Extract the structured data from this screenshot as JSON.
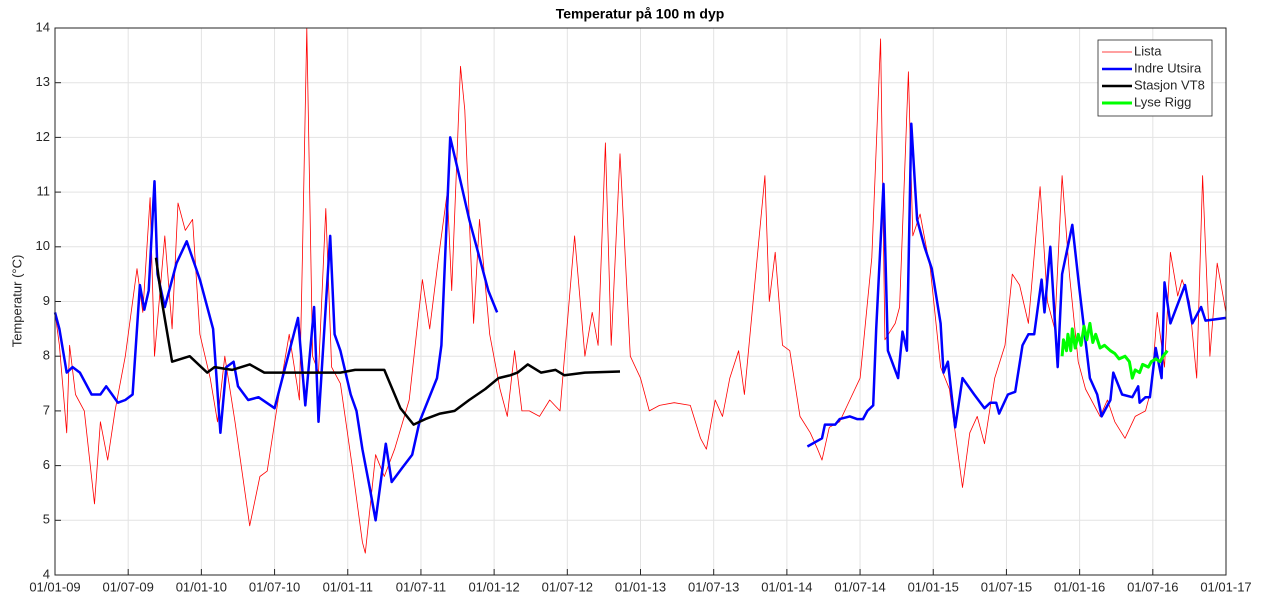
{
  "chart_data": {
    "type": "line",
    "title": "Temperatur på 100 m dyp",
    "y_label": "Temperatur (°C)",
    "xlim": [
      2009,
      2017
    ],
    "ylim": [
      4,
      14
    ],
    "xticks": [
      {
        "value": 2009,
        "label": "01/01-09"
      },
      {
        "value": 2009.5,
        "label": "01/07-09"
      },
      {
        "value": 2010,
        "label": "01/01-10"
      },
      {
        "value": 2010.5,
        "label": "01/07-10"
      },
      {
        "value": 2011,
        "label": "01/01-11"
      },
      {
        "value": 2011.5,
        "label": "01/07-11"
      },
      {
        "value": 2012,
        "label": "01/01-12"
      },
      {
        "value": 2012.5,
        "label": "01/07-12"
      },
      {
        "value": 2013,
        "label": "01/01-13"
      },
      {
        "value": 2013.5,
        "label": "01/07-13"
      },
      {
        "value": 2014,
        "label": "01/01-14"
      },
      {
        "value": 2014.5,
        "label": "01/07-14"
      },
      {
        "value": 2015,
        "label": "01/01-15"
      },
      {
        "value": 2015.5,
        "label": "01/07-15"
      },
      {
        "value": 2016,
        "label": "01/01-16"
      },
      {
        "value": 2016.5,
        "label": "01/07-16"
      },
      {
        "value": 2017,
        "label": "01/01-17"
      }
    ],
    "yticks": [
      4,
      5,
      6,
      7,
      8,
      9,
      10,
      11,
      12,
      13,
      14
    ],
    "grid": true,
    "legend": "upper right",
    "series": [
      {
        "name": "Lista",
        "color": "#ff0000",
        "width": 0.8,
        "x": [
          2009.0,
          2009.03,
          2009.08,
          2009.1,
          2009.14,
          2009.2,
          2009.27,
          2009.31,
          2009.36,
          2009.41,
          2009.48,
          2009.56,
          2009.6,
          2009.65,
          2009.68,
          2009.75,
          2009.8,
          2009.84,
          2009.89,
          2009.94,
          2009.99,
          2010.06,
          2010.11,
          2010.16,
          2010.23,
          2010.33,
          2010.4,
          2010.45,
          2010.53,
          2010.6,
          2010.67,
          2010.69,
          2010.72,
          2010.76,
          2010.8,
          2010.85,
          2010.89,
          2010.95,
          2011.03,
          2011.1,
          2011.12,
          2011.19,
          2011.25,
          2011.32,
          2011.42,
          2011.51,
          2011.56,
          2011.62,
          2011.68,
          2011.71,
          2011.77,
          2011.8,
          2011.86,
          2011.9,
          2011.97,
          2012.04,
          2012.09,
          2012.14,
          2012.19,
          2012.24,
          2012.31,
          2012.38,
          2012.45,
          2012.55,
          2012.62,
          2012.67,
          2012.71,
          2012.76,
          2012.8,
          2012.86,
          2012.93,
          2013.0,
          2013.06,
          2013.13,
          2013.23,
          2013.34,
          2013.41,
          2013.45,
          2013.51,
          2013.56,
          2013.61,
          2013.67,
          2013.71,
          2013.85,
          2013.88,
          2013.92,
          2013.97,
          2014.02,
          2014.09,
          2014.16,
          2014.21,
          2014.24,
          2014.29,
          2014.36,
          2014.43,
          2014.5,
          2014.58,
          2014.64,
          2014.67,
          2014.74,
          2014.77,
          2014.83,
          2014.86,
          2014.91,
          2014.98,
          2015.05,
          2015.11,
          2015.2,
          2015.25,
          2015.3,
          2015.35,
          2015.42,
          2015.49,
          2015.54,
          2015.59,
          2015.65,
          2015.73,
          2015.78,
          2015.83,
          2015.88,
          2015.93,
          2015.99,
          2016.04,
          2016.14,
          2016.19,
          2016.24,
          2016.31,
          2016.38,
          2016.45,
          2016.49,
          2016.53,
          2016.58,
          2016.62,
          2016.67,
          2016.7,
          2016.75,
          2016.8,
          2016.84,
          2016.89,
          2016.94,
          2017.0
        ],
        "values": [
          8.8,
          8.2,
          6.6,
          8.2,
          7.3,
          7.0,
          5.3,
          6.8,
          6.1,
          7.0,
          8.0,
          9.6,
          8.8,
          10.9,
          8.0,
          10.2,
          8.5,
          10.8,
          10.3,
          10.5,
          8.4,
          7.6,
          6.8,
          8.0,
          6.8,
          4.9,
          5.8,
          5.9,
          7.3,
          8.4,
          7.2,
          9.8,
          14.0,
          8.0,
          7.7,
          10.7,
          7.8,
          7.5,
          6.0,
          4.6,
          4.4,
          6.2,
          5.8,
          6.3,
          7.2,
          9.4,
          8.5,
          9.8,
          11.0,
          9.2,
          13.3,
          12.5,
          8.6,
          10.5,
          8.4,
          7.4,
          6.9,
          8.1,
          7.0,
          7.0,
          6.9,
          7.2,
          7.0,
          10.2,
          8.0,
          8.8,
          8.2,
          11.9,
          8.2,
          11.7,
          8.0,
          7.6,
          7.0,
          7.1,
          7.15,
          7.1,
          6.5,
          6.3,
          7.2,
          6.9,
          7.6,
          8.1,
          7.3,
          11.3,
          9.0,
          9.9,
          8.2,
          8.1,
          6.9,
          6.6,
          6.3,
          6.1,
          6.7,
          6.8,
          7.2,
          7.6,
          9.8,
          13.8,
          8.3,
          8.6,
          8.9,
          13.2,
          10.2,
          10.6,
          9.6,
          7.8,
          7.4,
          5.6,
          6.6,
          6.9,
          6.4,
          7.6,
          8.2,
          9.5,
          9.3,
          8.6,
          11.1,
          9.0,
          8.5,
          11.3,
          9.5,
          7.9,
          7.4,
          6.9,
          7.2,
          6.8,
          6.5,
          6.9,
          7.0,
          7.4,
          8.8,
          7.8,
          9.9,
          9.1,
          9.4,
          9.0,
          7.6,
          11.3,
          8.0,
          9.7,
          8.8
        ]
      },
      {
        "name": "Indre Utsira",
        "color": "#0000ff",
        "width": 2.5,
        "x": [
          2009.0,
          2009.03,
          2009.08,
          2009.12,
          2009.17,
          2009.25,
          2009.31,
          2009.35,
          2009.39,
          2009.43,
          2009.48,
          2009.53,
          2009.58,
          2009.61,
          2009.64,
          2009.68,
          2009.7,
          2009.75,
          2009.83,
          2009.9,
          2009.99,
          2010.08,
          2010.13,
          2010.17,
          2010.22,
          2010.25,
          2010.32,
          2010.39,
          2010.5,
          2010.66,
          2010.71,
          2010.77,
          2010.8,
          2010.88,
          2010.91,
          2010.95,
          2011.02,
          2011.06,
          2011.1,
          2011.15,
          2011.19,
          2011.26,
          2011.3,
          2011.37,
          2011.44,
          2011.49,
          2011.61,
          2011.64,
          2011.7,
          2011.77,
          2011.83,
          2011.9,
          2011.96,
          2012.02,
          2013.0,
          2014.14,
          2014.24,
          2014.26,
          2014.33,
          2014.36,
          2014.43,
          2014.48,
          2014.52,
          2014.55,
          2014.59,
          2014.61,
          2014.66,
          2014.69,
          2014.76,
          2014.79,
          2014.82,
          2014.85,
          2014.89,
          2014.94,
          2014.99,
          2015.05,
          2015.07,
          2015.1,
          2015.15,
          2015.2,
          2015.28,
          2015.35,
          2015.39,
          2015.43,
          2015.45,
          2015.51,
          2015.56,
          2015.61,
          2015.65,
          2015.69,
          2015.74,
          2015.76,
          2015.8,
          2015.85,
          2015.88,
          2015.95,
          2016.0,
          2016.07,
          2016.12,
          2016.15,
          2016.21,
          2016.23,
          2016.29,
          2016.36,
          2016.4,
          2016.41,
          2016.45,
          2016.48,
          2016.52,
          2016.56,
          2016.58,
          2016.62,
          2016.72,
          2016.77,
          2016.83,
          2016.86,
          2017.0
        ],
        "values": [
          8.8,
          8.5,
          7.7,
          7.8,
          7.7,
          7.3,
          7.3,
          7.45,
          7.3,
          7.15,
          7.2,
          7.3,
          9.3,
          8.85,
          9.2,
          11.2,
          9.5,
          8.9,
          9.7,
          10.1,
          9.4,
          8.5,
          6.6,
          7.8,
          7.9,
          7.45,
          7.2,
          7.25,
          7.05,
          8.7,
          7.1,
          8.9,
          6.8,
          10.2,
          8.4,
          8.1,
          7.3,
          7.0,
          6.3,
          5.6,
          5.0,
          6.4,
          5.7,
          5.95,
          6.2,
          6.8,
          7.6,
          8.2,
          12.0,
          11.2,
          10.5,
          9.8,
          9.2,
          8.8,
          null,
          6.35,
          6.5,
          6.75,
          6.75,
          6.85,
          6.9,
          6.85,
          6.85,
          7.0,
          7.1,
          8.5,
          11.15,
          8.1,
          7.6,
          8.45,
          8.1,
          12.25,
          10.5,
          10.0,
          9.6,
          8.6,
          7.7,
          7.9,
          6.7,
          7.6,
          7.3,
          7.05,
          7.15,
          7.15,
          6.95,
          7.3,
          7.35,
          8.2,
          8.4,
          8.4,
          9.4,
          8.8,
          10.0,
          7.8,
          9.5,
          10.4,
          9.2,
          7.6,
          7.3,
          6.9,
          7.2,
          7.7,
          7.3,
          7.25,
          7.45,
          7.15,
          7.25,
          7.25,
          8.15,
          7.6,
          9.35,
          8.6,
          9.3,
          8.6,
          8.9,
          8.65,
          8.7
        ]
      },
      {
        "name": "Stasjon VT8",
        "color": "#000000",
        "width": 2.5,
        "x": [
          2009.69,
          2009.73,
          2009.8,
          2009.92,
          2010.04,
          2010.09,
          2010.21,
          2010.33,
          2010.43,
          2010.61,
          2010.95,
          2011.05,
          2011.25,
          2011.36,
          2011.45,
          2011.53,
          2011.63,
          2011.73,
          2011.83,
          2011.94,
          2012.03,
          2012.11,
          2012.16,
          2012.23,
          2012.32,
          2012.42,
          2012.48,
          2012.62,
          2012.86
        ],
        "values": [
          9.8,
          9.0,
          7.9,
          8.0,
          7.7,
          7.8,
          7.75,
          7.85,
          7.7,
          7.7,
          7.7,
          7.75,
          7.75,
          7.05,
          6.75,
          6.85,
          6.95,
          7.0,
          7.2,
          7.4,
          7.6,
          7.65,
          7.7,
          7.85,
          7.7,
          7.75,
          7.65,
          7.7,
          7.72
        ]
      },
      {
        "name": "Lyse Rigg",
        "color": "#00ff00",
        "width": 3,
        "x": [
          2015.88,
          2015.89,
          2015.91,
          2015.92,
          2015.94,
          2015.95,
          2015.97,
          2015.99,
          2016.01,
          2016.03,
          2016.05,
          2016.07,
          2016.09,
          2016.11,
          2016.14,
          2016.17,
          2016.21,
          2016.24,
          2016.27,
          2016.31,
          2016.34,
          2016.36,
          2016.38,
          2016.41,
          2016.43,
          2016.47,
          2016.49,
          2016.52,
          2016.55,
          2016.57,
          2016.6
        ],
        "values": [
          8.0,
          8.3,
          8.1,
          8.4,
          8.1,
          8.5,
          8.15,
          8.4,
          8.2,
          8.55,
          8.3,
          8.6,
          8.25,
          8.4,
          8.15,
          8.2,
          8.1,
          8.05,
          7.95,
          8.0,
          7.9,
          7.6,
          7.75,
          7.7,
          7.85,
          7.8,
          7.9,
          7.95,
          7.9,
          8.0,
          8.1
        ]
      }
    ]
  }
}
